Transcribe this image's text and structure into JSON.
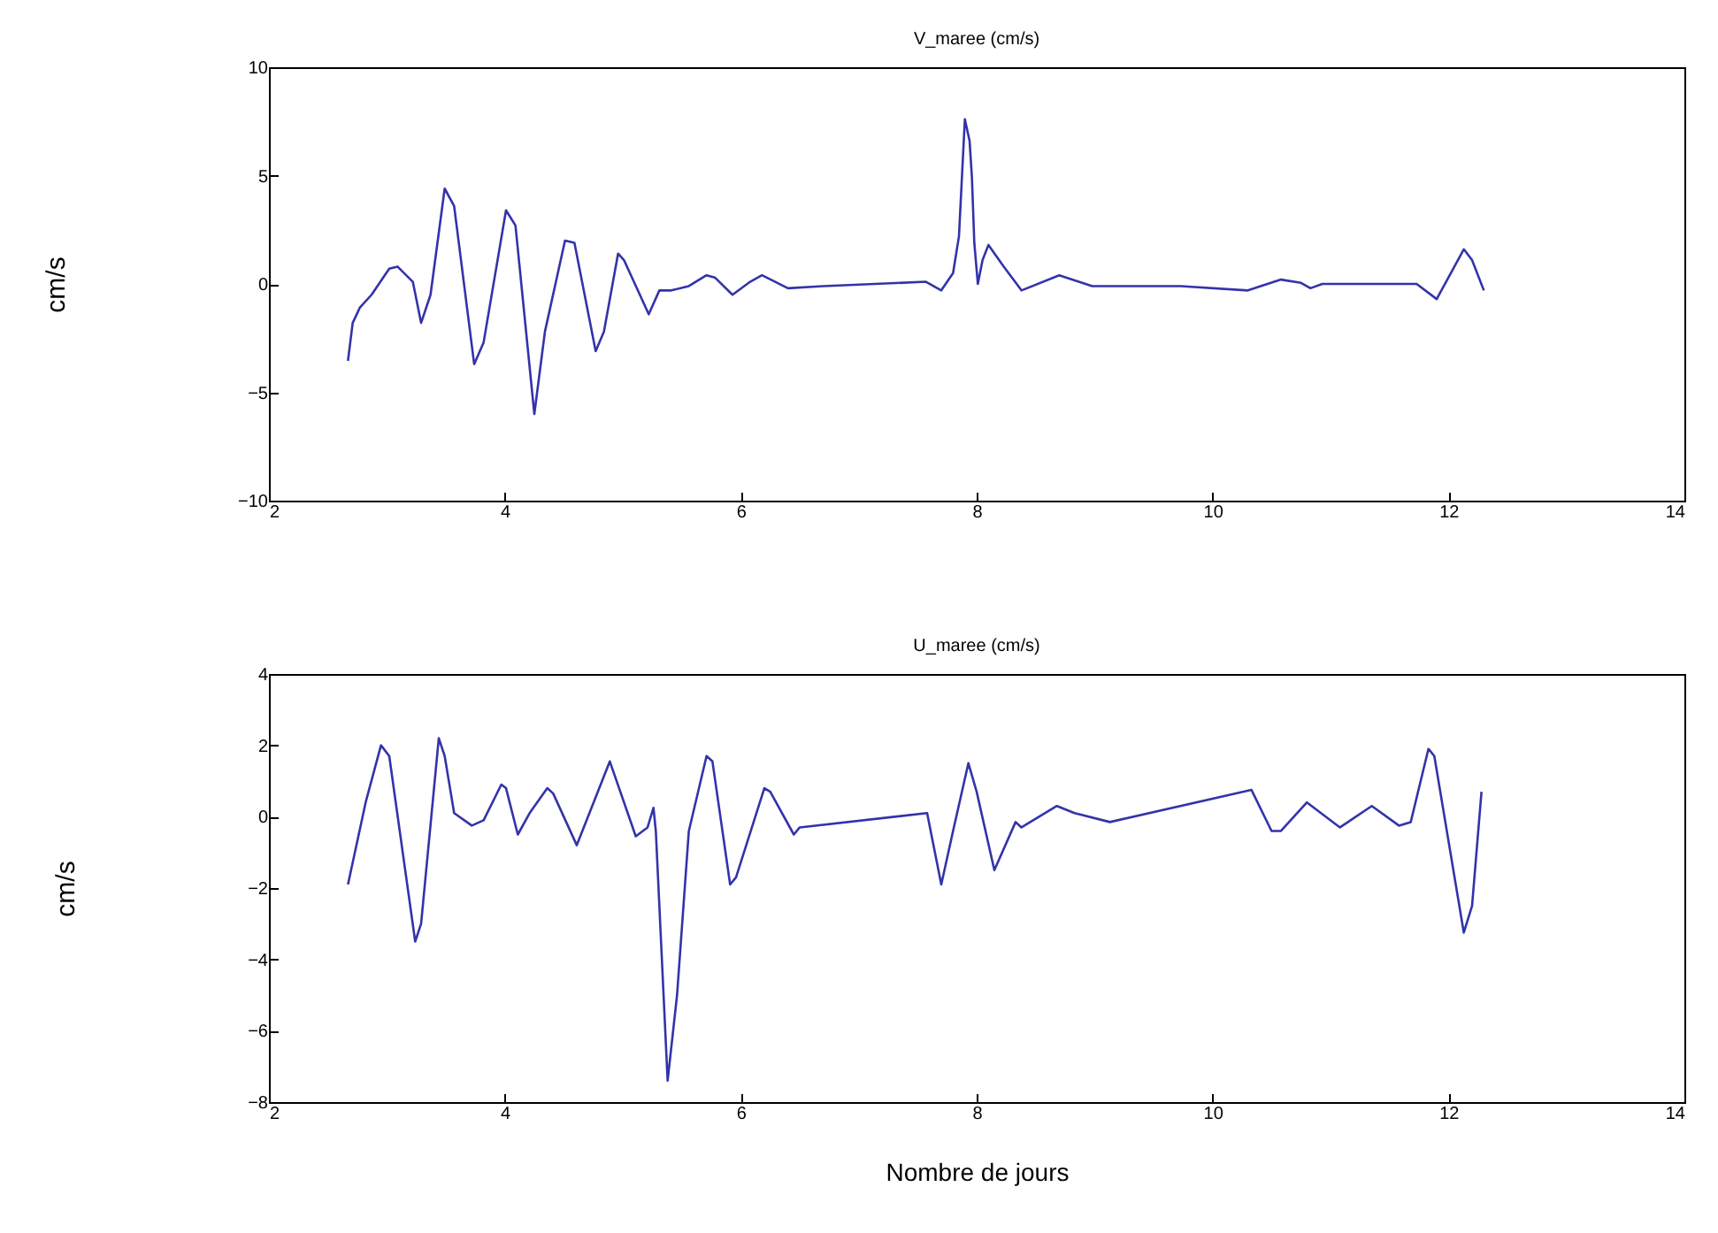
{
  "chart_data": [
    {
      "type": "line",
      "title": "V_maree (cm/s)",
      "ylabel": "cm/s",
      "xlim": [
        2,
        14
      ],
      "xticks": [
        2,
        4,
        6,
        8,
        10,
        12,
        14
      ],
      "ylim": [
        -10,
        10
      ],
      "yticks": [
        -10,
        -5,
        0,
        5,
        10
      ],
      "x": [
        2.67,
        2.71,
        2.77,
        2.87,
        3.02,
        3.09,
        3.22,
        3.29,
        3.37,
        3.49,
        3.57,
        3.74,
        3.82,
        4.01,
        4.09,
        4.25,
        4.34,
        4.51,
        4.59,
        4.77,
        4.84,
        4.96,
        5.01,
        5.22,
        5.31,
        5.41,
        5.56,
        5.71,
        5.78,
        5.93,
        6.08,
        6.18,
        6.4,
        6.7,
        7.57,
        7.7,
        7.8,
        7.85,
        7.9,
        7.94,
        7.96,
        7.98,
        8.01,
        8.05,
        8.1,
        8.23,
        8.38,
        8.7,
        8.98,
        9.73,
        10.3,
        10.58,
        10.75,
        10.83,
        10.93,
        11.73,
        11.9,
        12.13,
        12.2,
        12.3
      ],
      "series": [
        {
          "color": "#3333aa",
          "values": [
            -3.55,
            -1.8,
            -1.1,
            -0.5,
            0.7,
            0.8,
            0.1,
            -1.8,
            -0.5,
            4.4,
            3.6,
            -3.7,
            -2.7,
            3.4,
            2.7,
            -6.0,
            -2.2,
            2.0,
            1.9,
            -3.1,
            -2.2,
            1.4,
            1.1,
            -1.4,
            -0.3,
            -0.3,
            -0.1,
            0.4,
            0.3,
            -0.5,
            0.1,
            0.4,
            -0.2,
            -0.1,
            0.1,
            -0.3,
            0.5,
            2.2,
            7.6,
            6.6,
            4.9,
            1.9,
            0,
            1.1,
            1.8,
            0.8,
            -0.3,
            0.4,
            -0.1,
            -0.1,
            -0.3,
            0.2,
            0.05,
            -0.2,
            0,
            0,
            -0.7,
            1.6,
            1.1,
            -0.3
          ]
        }
      ]
    },
    {
      "type": "line",
      "title": "U_maree (cm/s)",
      "xlabel": "Nombre de jours",
      "ylabel": "cm/s",
      "xlim": [
        2,
        14
      ],
      "xticks": [
        2,
        4,
        6,
        8,
        10,
        12,
        14
      ],
      "ylim": [
        -8,
        4
      ],
      "yticks": [
        -8,
        -6,
        -4,
        -2,
        0,
        2,
        4
      ],
      "x": [
        2.67,
        2.82,
        2.95,
        3.02,
        3.24,
        3.29,
        3.44,
        3.49,
        3.57,
        3.72,
        3.82,
        3.97,
        4.01,
        4.11,
        4.21,
        4.36,
        4.41,
        4.61,
        4.89,
        5.11,
        5.21,
        5.26,
        5.28,
        5.38,
        5.46,
        5.56,
        5.71,
        5.76,
        5.91,
        5.96,
        6.2,
        6.25,
        6.45,
        6.5,
        7.58,
        7.7,
        7.8,
        7.93,
        8.0,
        8.15,
        8.33,
        8.38,
        8.68,
        8.83,
        9.13,
        10.33,
        10.5,
        10.58,
        10.8,
        11.08,
        11.35,
        11.58,
        11.68,
        11.83,
        11.88,
        12.13,
        12.2,
        12.28
      ],
      "series": [
        {
          "color": "#3333aa",
          "values": [
            -1.9,
            0.4,
            2.0,
            1.7,
            -3.5,
            -3.0,
            2.2,
            1.7,
            0.1,
            -0.25,
            -0.1,
            0.9,
            0.8,
            -0.5,
            0.1,
            0.8,
            0.65,
            -0.8,
            1.55,
            -0.55,
            -0.3,
            0.25,
            -0.4,
            -7.4,
            -5.0,
            -0.4,
            1.7,
            1.55,
            -1.9,
            -1.7,
            0.8,
            0.7,
            -0.5,
            -0.3,
            0.1,
            -1.9,
            -0.4,
            1.5,
            0.7,
            -1.5,
            -0.15,
            -0.3,
            0.3,
            0.1,
            -0.15,
            0.75,
            -0.4,
            -0.4,
            0.4,
            -0.3,
            0.3,
            -0.25,
            -0.15,
            1.9,
            1.7,
            -3.25,
            -2.5,
            0.7
          ]
        }
      ]
    }
  ]
}
